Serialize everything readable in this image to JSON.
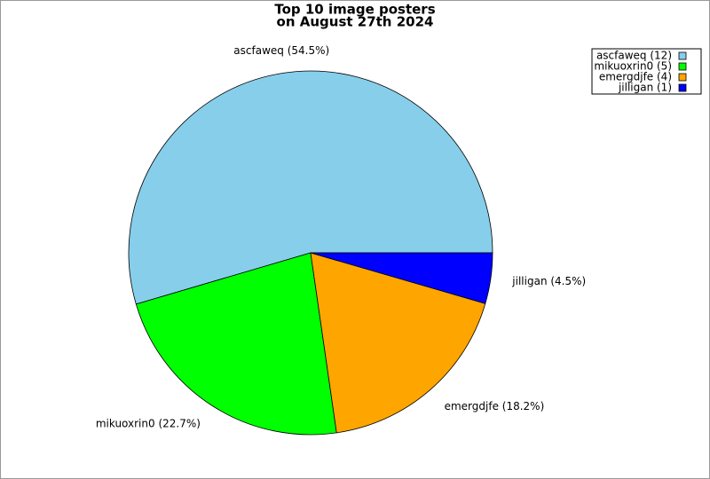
{
  "chart_data": {
    "type": "pie",
    "title": [
      "Top 10 image posters",
      "on August 27th 2024"
    ],
    "categories": [
      "ascfaweq (12)",
      "mikuoxrin0 (5)",
      "emergdjfe (4)",
      "jilligan (1)"
    ],
    "values": [
      54.5,
      22.7,
      18.2,
      4.5
    ],
    "value_labels": [
      "ascfaweq (54.5%)",
      "mikuoxrin0 (22.7%)",
      "emergdjfe (18.2%)",
      "jilligan (4.5%)"
    ],
    "colors": [
      "#87ceeb",
      "#00ff00",
      "#ffa500",
      "#0000ff"
    ],
    "legend": "upper-right"
  }
}
